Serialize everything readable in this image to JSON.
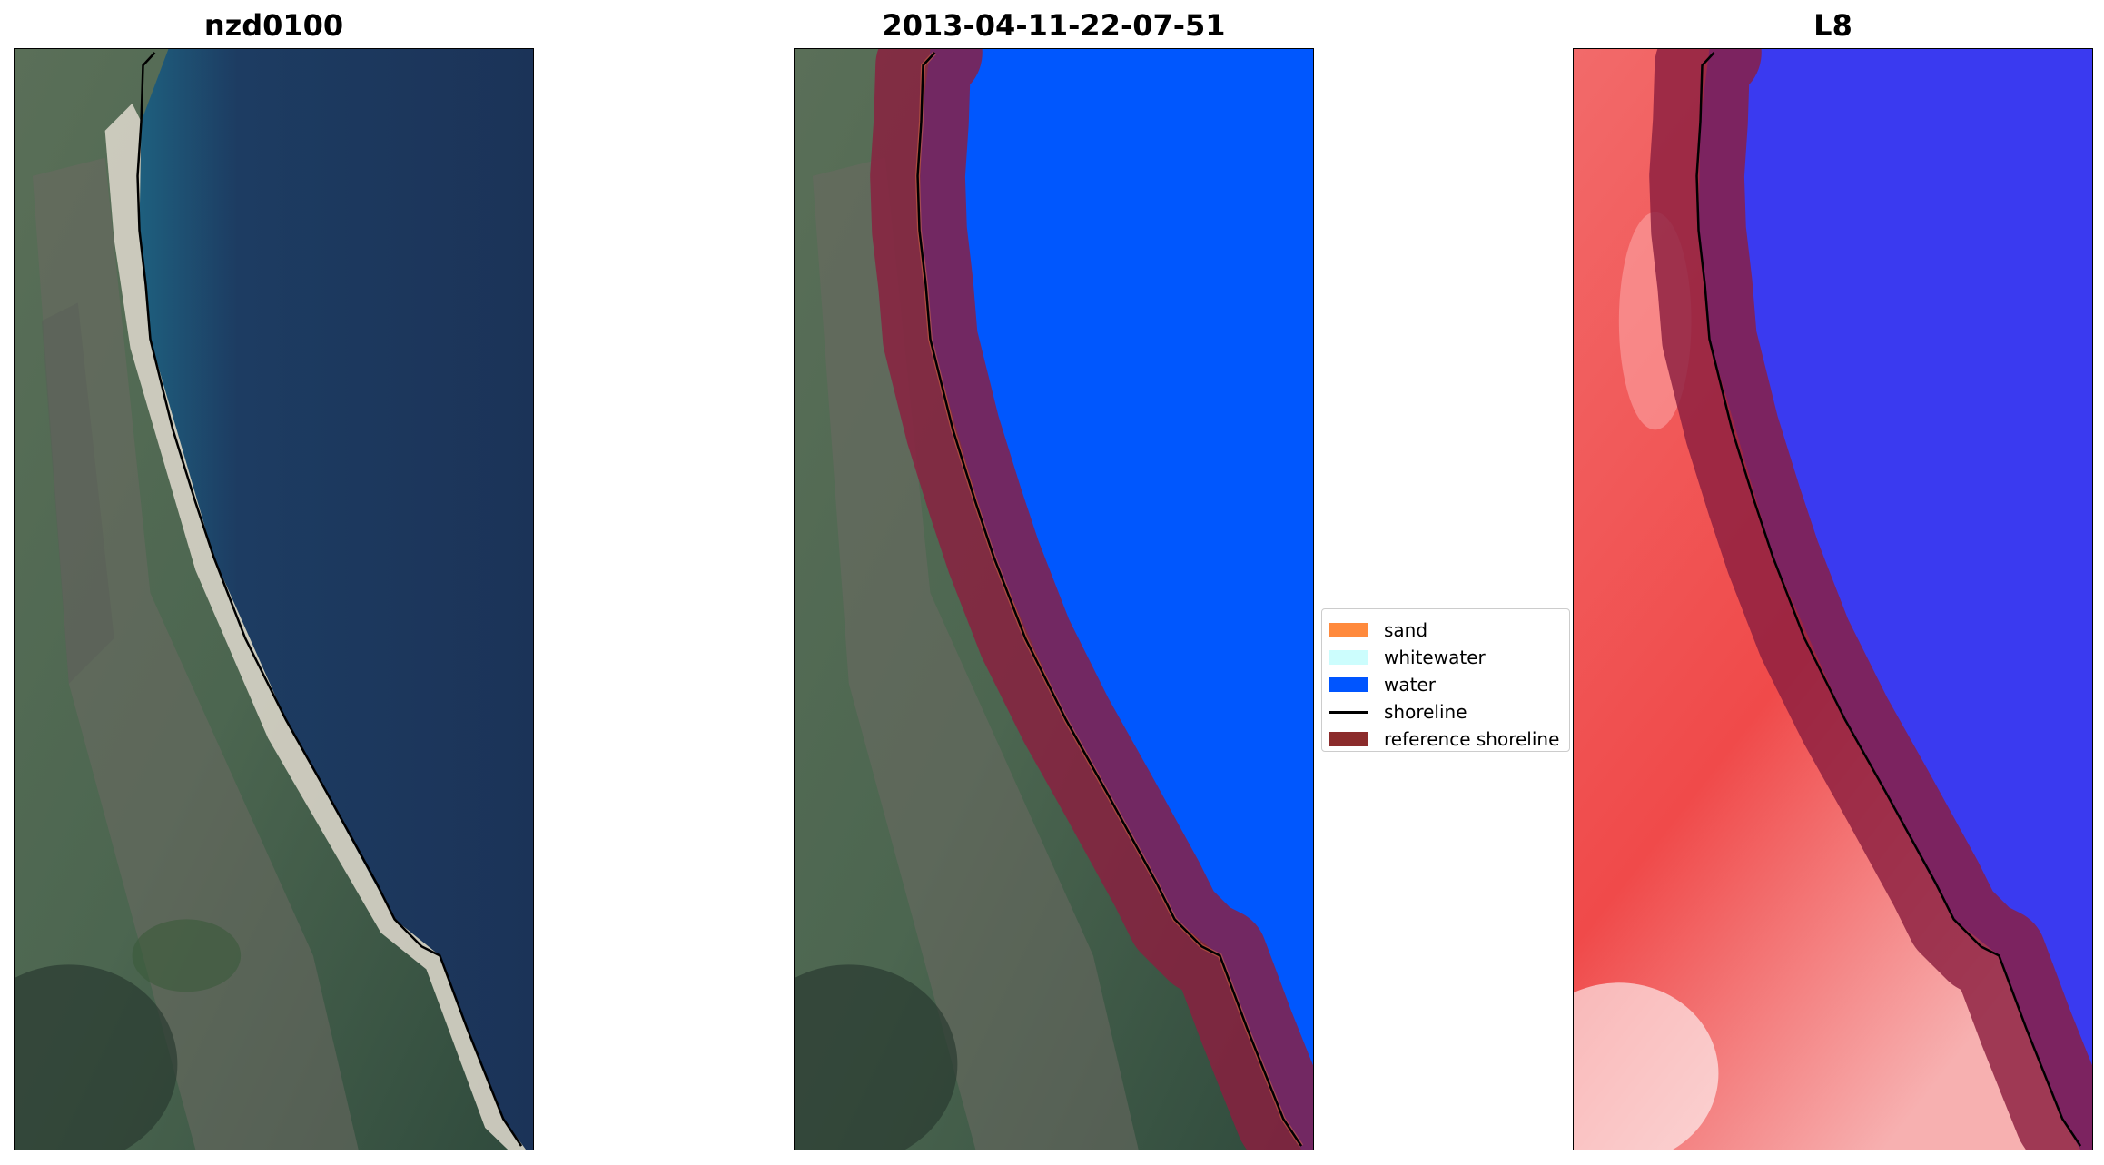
{
  "panels": [
    {
      "title": "nzd0100",
      "type": "rgb"
    },
    {
      "title": "2013-04-11-22-07-51",
      "type": "classified"
    },
    {
      "title": "L8",
      "type": "index"
    }
  ],
  "legend": {
    "items": [
      {
        "label": "sand",
        "kind": "patch",
        "color": "#ff8a3d"
      },
      {
        "label": "whitewater",
        "kind": "patch",
        "color": "#ccfdfd"
      },
      {
        "label": "water",
        "kind": "patch",
        "color": "#0055ff"
      },
      {
        "label": "shoreline",
        "kind": "line",
        "color": "#000000"
      },
      {
        "label": "reference shoreline",
        "kind": "patch",
        "color": "#8b2b2b"
      }
    ]
  },
  "colors": {
    "ocean_dark": "#1b3358",
    "land_green": "#4d6b4a",
    "beach_sand": "#d8d4c8",
    "water_class": "#0057fe",
    "buffer_red": "#8b1e3f",
    "index_red": "#f05a5a",
    "index_blue": "#3a3af0"
  }
}
